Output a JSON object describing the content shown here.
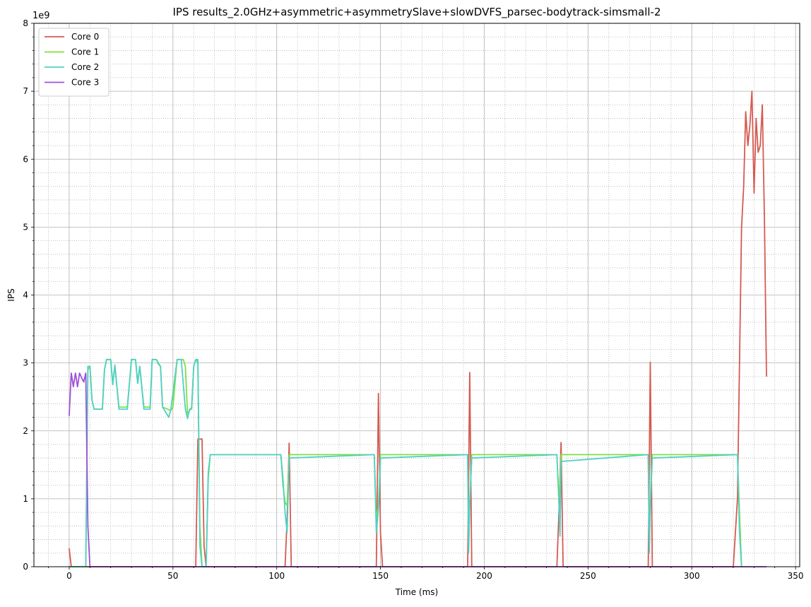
{
  "chart_data": {
    "type": "line",
    "title": "IPS results_2.0GHz+asymmetric+asymmetrySlave+slowDVFS_parsec-bodytrack-simsmall-2",
    "xlabel": "Time (ms)",
    "ylabel": "IPS",
    "y_offset_text": "1e9",
    "xlim": [
      -17,
      352
    ],
    "ylim": [
      0,
      8
    ],
    "x_ticks": [
      0,
      50,
      100,
      150,
      200,
      250,
      300,
      350
    ],
    "y_ticks": [
      0,
      1,
      2,
      3,
      4,
      5,
      6,
      7,
      8
    ],
    "grid": "major solid, minor dotted",
    "legend_position": "upper-left",
    "series": [
      {
        "name": "Core 0",
        "color": "#d65a50",
        "points": [
          [
            0,
            0.27
          ],
          [
            1,
            0
          ],
          [
            60,
            0
          ],
          [
            61,
            0
          ],
          [
            62,
            1.88
          ],
          [
            64,
            1.88
          ],
          [
            65,
            0.3
          ],
          [
            66,
            0
          ],
          [
            104,
            0
          ],
          [
            105,
            0.7
          ],
          [
            106,
            1.82
          ],
          [
            107,
            0
          ],
          [
            148,
            0
          ],
          [
            149,
            2.55
          ],
          [
            150,
            0.5
          ],
          [
            151,
            0
          ],
          [
            192,
            0
          ],
          [
            193,
            2.86
          ],
          [
            194,
            0
          ],
          [
            235,
            0
          ],
          [
            236,
            0.8
          ],
          [
            237,
            1.83
          ],
          [
            238,
            0
          ],
          [
            279,
            0
          ],
          [
            280,
            3.01
          ],
          [
            281,
            0
          ],
          [
            320,
            0
          ],
          [
            322,
            1.0
          ],
          [
            324,
            5.0
          ],
          [
            325,
            5.6
          ],
          [
            326,
            6.7
          ],
          [
            327,
            6.2
          ],
          [
            328,
            6.5
          ],
          [
            329,
            7.0
          ],
          [
            330,
            5.5
          ],
          [
            331,
            6.6
          ],
          [
            332,
            6.1
          ],
          [
            333,
            6.2
          ],
          [
            334,
            6.8
          ],
          [
            335,
            5.1
          ],
          [
            336,
            2.8
          ]
        ]
      },
      {
        "name": "Core 1",
        "color": "#7fe040",
        "points": [
          [
            0,
            0
          ],
          [
            8,
            0
          ],
          [
            9,
            2.9
          ],
          [
            10,
            2.95
          ],
          [
            11,
            2.45
          ],
          [
            12,
            2.32
          ],
          [
            16,
            2.32
          ],
          [
            17,
            2.9
          ],
          [
            18,
            3.05
          ],
          [
            20,
            3.05
          ],
          [
            21,
            2.7
          ],
          [
            22,
            2.95
          ],
          [
            24,
            2.35
          ],
          [
            28,
            2.35
          ],
          [
            30,
            3.05
          ],
          [
            32,
            3.05
          ],
          [
            33,
            2.7
          ],
          [
            34,
            2.95
          ],
          [
            36,
            2.35
          ],
          [
            39,
            2.35
          ],
          [
            40,
            3.05
          ],
          [
            42,
            3.05
          ],
          [
            44,
            2.95
          ],
          [
            45,
            2.35
          ],
          [
            49,
            2.3
          ],
          [
            50,
            2.35
          ],
          [
            52,
            3.05
          ],
          [
            55,
            3.05
          ],
          [
            56,
            2.95
          ],
          [
            57,
            2.25
          ],
          [
            58,
            2.3
          ],
          [
            59,
            2.35
          ],
          [
            60,
            2.95
          ],
          [
            61,
            3.05
          ],
          [
            62,
            3.0
          ],
          [
            63,
            0.6
          ],
          [
            64,
            0
          ],
          [
            66,
            0
          ],
          [
            67,
            1.3
          ],
          [
            68,
            1.65
          ],
          [
            102,
            1.65
          ],
          [
            103,
            1.2
          ],
          [
            104,
            0.95
          ],
          [
            105,
            0.9
          ],
          [
            106,
            1.65
          ],
          [
            147,
            1.65
          ],
          [
            148,
            0.7
          ],
          [
            149,
            0.9
          ],
          [
            150,
            1.65
          ],
          [
            192,
            1.65
          ],
          [
            192.5,
            0.3
          ],
          [
            193,
            0.95
          ],
          [
            194,
            1.65
          ],
          [
            235,
            1.65
          ],
          [
            236,
            0.95
          ],
          [
            237,
            1.65
          ],
          [
            279,
            1.65
          ],
          [
            279.5,
            0.3
          ],
          [
            280,
            0.95
          ],
          [
            281,
            1.65
          ],
          [
            322,
            1.65
          ],
          [
            323,
            0.8
          ],
          [
            324,
            0
          ]
        ]
      },
      {
        "name": "Core 2",
        "color": "#50d0c8",
        "points": [
          [
            0,
            0
          ],
          [
            8,
            0
          ],
          [
            9,
            2.95
          ],
          [
            10,
            2.95
          ],
          [
            11,
            2.45
          ],
          [
            12,
            2.32
          ],
          [
            16,
            2.32
          ],
          [
            17,
            2.9
          ],
          [
            18,
            3.05
          ],
          [
            20,
            3.05
          ],
          [
            21,
            2.68
          ],
          [
            22,
            2.97
          ],
          [
            24,
            2.32
          ],
          [
            28,
            2.32
          ],
          [
            30,
            3.05
          ],
          [
            32,
            3.05
          ],
          [
            33,
            2.7
          ],
          [
            34,
            2.95
          ],
          [
            36,
            2.32
          ],
          [
            39,
            2.32
          ],
          [
            40,
            3.05
          ],
          [
            42,
            3.05
          ],
          [
            43,
            2.98
          ],
          [
            44,
            2.95
          ],
          [
            45,
            2.35
          ],
          [
            48,
            2.2
          ],
          [
            49,
            2.32
          ],
          [
            52,
            3.05
          ],
          [
            54,
            3.05
          ],
          [
            56,
            2.32
          ],
          [
            57,
            2.18
          ],
          [
            58,
            2.32
          ],
          [
            59,
            2.32
          ],
          [
            60,
            2.95
          ],
          [
            61,
            3.05
          ],
          [
            62,
            3.05
          ],
          [
            63,
            0.3
          ],
          [
            64,
            0
          ],
          [
            66,
            0
          ],
          [
            67,
            1.4
          ],
          [
            68,
            1.65
          ],
          [
            102,
            1.65
          ],
          [
            103,
            1.3
          ],
          [
            104,
            0.8
          ],
          [
            105,
            0.5
          ],
          [
            106,
            1.6
          ],
          [
            147,
            1.65
          ],
          [
            148,
            0.5
          ],
          [
            149,
            0.85
          ],
          [
            150,
            1.6
          ],
          [
            192,
            1.65
          ],
          [
            192.5,
            0.2
          ],
          [
            193,
            0.9
          ],
          [
            194,
            1.6
          ],
          [
            235,
            1.65
          ],
          [
            236,
            0.95
          ],
          [
            236.5,
            0.45
          ],
          [
            237,
            1.55
          ],
          [
            279,
            1.65
          ],
          [
            279.5,
            0.2
          ],
          [
            280,
            0.9
          ],
          [
            281,
            1.6
          ],
          [
            322,
            1.65
          ],
          [
            323,
            0.5
          ],
          [
            324,
            0
          ]
        ]
      },
      {
        "name": "Core 3",
        "color": "#a050d8",
        "points": [
          [
            0,
            2.22
          ],
          [
            1,
            2.85
          ],
          [
            2,
            2.65
          ],
          [
            3,
            2.85
          ],
          [
            4,
            2.65
          ],
          [
            5,
            2.85
          ],
          [
            6,
            2.78
          ],
          [
            7,
            2.72
          ],
          [
            8,
            2.85
          ],
          [
            9,
            0.6
          ],
          [
            10,
            0
          ],
          [
            336,
            0
          ]
        ]
      }
    ]
  }
}
